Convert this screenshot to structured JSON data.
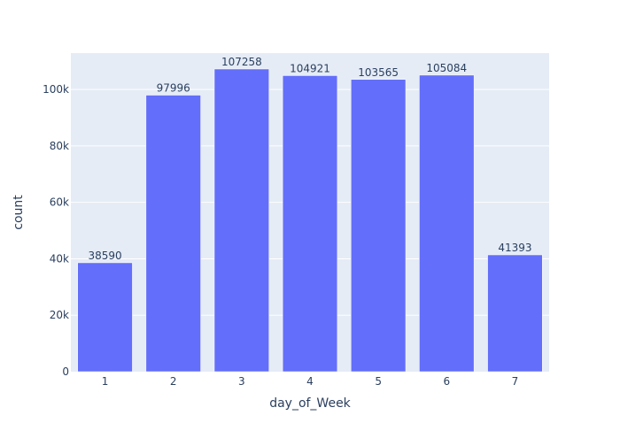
{
  "colors": {
    "plot_background": "#e5ecf6",
    "bar_fill": "#636efa",
    "gridline": "#ffffff",
    "text": "#2a3f5f"
  },
  "chart_data": {
    "type": "bar",
    "title": "",
    "xlabel": "day_of_Week",
    "ylabel": "count",
    "categories": [
      "1",
      "2",
      "3",
      "4",
      "5",
      "6",
      "7"
    ],
    "values": [
      38590,
      97996,
      107258,
      104921,
      103565,
      105084,
      41393
    ],
    "data_labels": [
      "38590",
      "97996",
      "107258",
      "104921",
      "103565",
      "105084",
      "41393"
    ],
    "ylim": [
      0,
      112903
    ],
    "y_ticks": [
      0,
      20000,
      40000,
      60000,
      80000,
      100000
    ],
    "y_tick_labels": [
      "0",
      "20k",
      "40k",
      "60k",
      "80k",
      "100k"
    ],
    "grid": true,
    "legend": "none"
  }
}
